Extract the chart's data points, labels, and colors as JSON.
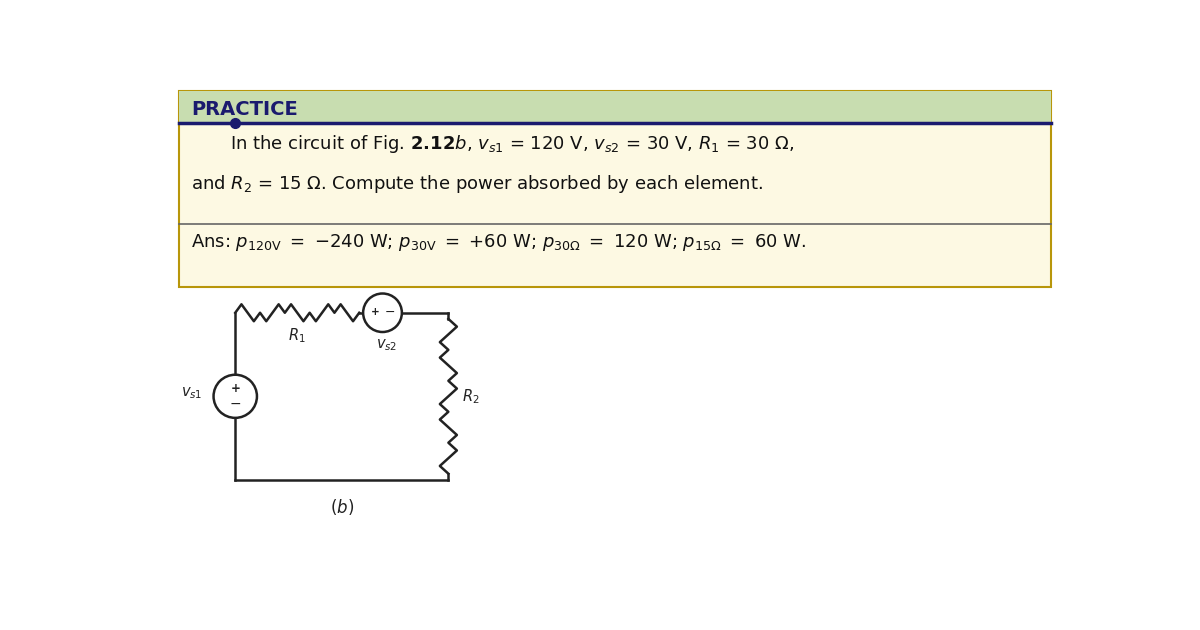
{
  "bg_color": "#ffffff",
  "box_bg_color": "#fdf9e3",
  "box_border_color": "#b8960a",
  "header_bg_color": "#c8ddb0",
  "header_text": "PRACTICE",
  "header_text_color": "#1a1a6e",
  "header_line_color": "#1a1a6e",
  "fig_width": 12.0,
  "fig_height": 6.3
}
